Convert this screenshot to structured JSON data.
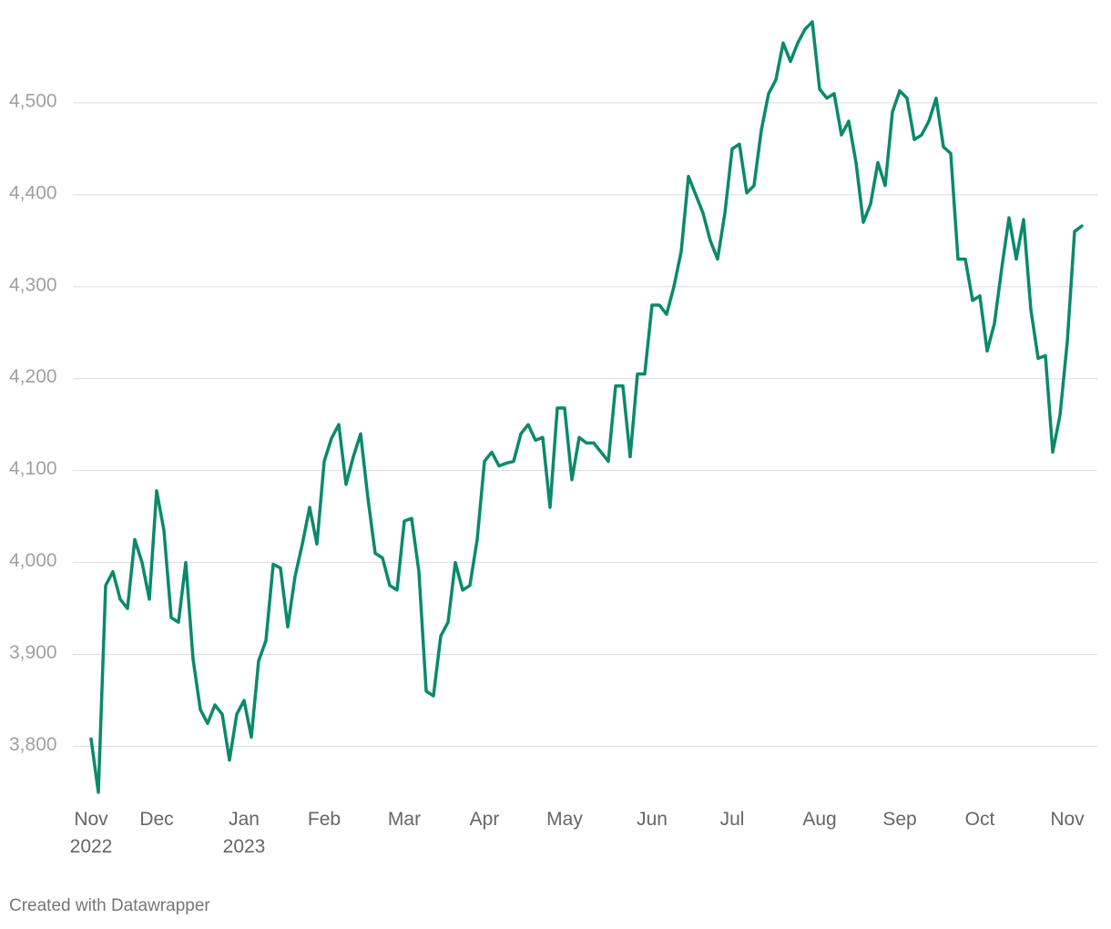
{
  "chart_data": {
    "type": "line",
    "color": "#0a8a6b",
    "grid": true,
    "footer": "Created with Datawrapper",
    "ylim": [
      3745,
      4592
    ],
    "yticks": [
      {
        "value": 3800,
        "label": "3,800"
      },
      {
        "value": 3900,
        "label": "3,900"
      },
      {
        "value": 4000,
        "label": "4,000"
      },
      {
        "value": 4100,
        "label": "4,100"
      },
      {
        "value": 4200,
        "label": "4,200"
      },
      {
        "value": 4300,
        "label": "4,300"
      },
      {
        "value": 4400,
        "label": "4,400"
      },
      {
        "value": 4500,
        "label": "4,500"
      }
    ],
    "categories": [
      "Nov 2022",
      null,
      null,
      null,
      null,
      null,
      null,
      null,
      null,
      "Dec",
      null,
      null,
      null,
      null,
      null,
      null,
      null,
      null,
      null,
      null,
      null,
      "Jan 2023",
      null,
      null,
      null,
      null,
      null,
      null,
      null,
      null,
      null,
      null,
      "Feb",
      null,
      null,
      null,
      null,
      null,
      null,
      null,
      null,
      null,
      null,
      "Mar",
      null,
      null,
      null,
      null,
      null,
      null,
      null,
      null,
      null,
      null,
      "Apr",
      null,
      null,
      null,
      null,
      null,
      null,
      null,
      null,
      null,
      null,
      "May",
      null,
      null,
      null,
      null,
      null,
      null,
      null,
      null,
      null,
      null,
      null,
      "Jun",
      null,
      null,
      null,
      null,
      null,
      null,
      null,
      null,
      null,
      null,
      "Jul",
      null,
      null,
      null,
      null,
      null,
      null,
      null,
      null,
      null,
      null,
      null,
      "Aug",
      null,
      null,
      null,
      null,
      null,
      null,
      null,
      null,
      null,
      null,
      "Sep",
      null,
      null,
      null,
      null,
      null,
      null,
      null,
      null,
      null,
      null,
      "Oct",
      null,
      null,
      null,
      null,
      null,
      null,
      null,
      null,
      null,
      null,
      null,
      "Nov",
      null,
      null
    ],
    "values": [
      3808,
      3750,
      3975,
      3990,
      3960,
      3950,
      4025,
      4000,
      3960,
      4078,
      4035,
      3940,
      3935,
      4000,
      3895,
      3840,
      3825,
      3845,
      3835,
      3785,
      3835,
      3850,
      3810,
      3893,
      3915,
      3998,
      3994,
      3930,
      3985,
      4020,
      4060,
      4020,
      4110,
      4135,
      4150,
      4085,
      4115,
      4140,
      4070,
      4010,
      4005,
      3975,
      3970,
      4045,
      4048,
      3990,
      3860,
      3855,
      3920,
      3935,
      4000,
      3970,
      3975,
      4025,
      4110,
      4120,
      4105,
      4108,
      4110,
      4140,
      4150,
      4133,
      4136,
      4060,
      4168,
      4168,
      4090,
      4136,
      4130,
      4130,
      4120,
      4110,
      4192,
      4192,
      4115,
      4205,
      4205,
      4280,
      4280,
      4270,
      4300,
      4338,
      4420,
      4400,
      4380,
      4350,
      4330,
      4380,
      4450,
      4455,
      4402,
      4410,
      4470,
      4510,
      4525,
      4565,
      4545,
      4565,
      4580,
      4588,
      4515,
      4505,
      4510,
      4465,
      4480,
      4435,
      4370,
      4390,
      4435,
      4410,
      4490,
      4513,
      4505,
      4460,
      4465,
      4480,
      4505,
      4452,
      4445,
      4330,
      4330,
      4285,
      4290,
      4230,
      4260,
      4320,
      4375,
      4330,
      4373,
      4275,
      4222,
      4225,
      4120,
      4160,
      4240,
      4360,
      4366
    ]
  }
}
